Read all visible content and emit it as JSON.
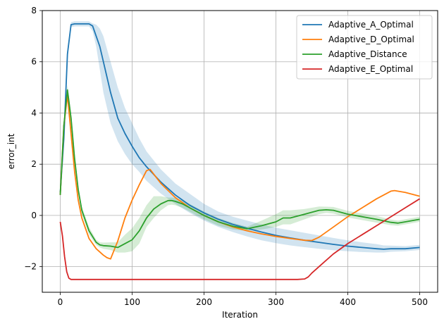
{
  "chart_data": {
    "type": "line",
    "xlabel": "Iteration",
    "ylabel": "error_int",
    "xlim": [
      -25,
      525
    ],
    "ylim": [
      -3,
      8
    ],
    "xticks": [
      0,
      100,
      200,
      300,
      400,
      500
    ],
    "yticks": [
      -2,
      0,
      2,
      4,
      6,
      8
    ],
    "ytick_labels": [
      "−2",
      "0",
      "2",
      "4",
      "6",
      "8"
    ],
    "grid": true,
    "legend_position": "top-right",
    "series": [
      {
        "name": "Adaptive_A_Optimal",
        "color": "#1f77b4",
        "x": [
          0,
          5,
          10,
          15,
          20,
          30,
          40,
          45,
          50,
          55,
          60,
          70,
          80,
          90,
          100,
          110,
          120,
          140,
          160,
          180,
          200,
          220,
          240,
          260,
          280,
          300,
          320,
          340,
          360,
          380,
          400,
          420,
          440,
          450,
          460,
          480,
          500
        ],
        "y": [
          0.9,
          3.0,
          6.3,
          7.45,
          7.48,
          7.48,
          7.48,
          7.4,
          7.0,
          6.6,
          6.0,
          4.8,
          3.8,
          3.2,
          2.7,
          2.25,
          1.9,
          1.3,
          0.8,
          0.4,
          0.1,
          -0.15,
          -0.35,
          -0.5,
          -0.65,
          -0.78,
          -0.88,
          -0.97,
          -1.05,
          -1.13,
          -1.2,
          -1.25,
          -1.3,
          -1.32,
          -1.3,
          -1.3,
          -1.25
        ],
        "band_lower": [
          0.8,
          2.9,
          6.1,
          7.35,
          7.38,
          7.38,
          7.38,
          7.2,
          6.6,
          5.7,
          4.8,
          3.6,
          2.9,
          2.4,
          2.0,
          1.7,
          1.35,
          0.85,
          0.45,
          0.1,
          -0.2,
          -0.45,
          -0.65,
          -0.82,
          -0.97,
          -1.08,
          -1.17,
          -1.24,
          -1.3,
          -1.36,
          -1.4,
          -1.43,
          -1.45,
          -1.45,
          -1.42,
          -1.4,
          -1.35
        ],
        "band_upper": [
          1.0,
          3.1,
          6.5,
          7.55,
          7.58,
          7.58,
          7.58,
          7.5,
          7.45,
          7.3,
          7.0,
          6.0,
          5.0,
          4.2,
          3.6,
          3.0,
          2.5,
          1.8,
          1.25,
          0.85,
          0.45,
          0.15,
          -0.05,
          -0.2,
          -0.35,
          -0.48,
          -0.58,
          -0.68,
          -0.78,
          -0.88,
          -0.97,
          -1.05,
          -1.12,
          -1.17,
          -1.18,
          -1.2,
          -1.15
        ]
      },
      {
        "name": "Adaptive_D_Optimal",
        "color": "#ff7f0e",
        "x": [
          0,
          5,
          10,
          15,
          20,
          25,
          30,
          40,
          50,
          60,
          65,
          70,
          80,
          90,
          100,
          110,
          120,
          125,
          140,
          160,
          180,
          200,
          220,
          240,
          260,
          280,
          300,
          320,
          340,
          350,
          360,
          380,
          400,
          420,
          440,
          460,
          465,
          480,
          500
        ],
        "y": [
          0.8,
          3.5,
          4.7,
          3.2,
          1.7,
          0.6,
          -0.1,
          -0.9,
          -1.3,
          -1.55,
          -1.65,
          -1.7,
          -1.0,
          -0.1,
          0.6,
          1.2,
          1.75,
          1.8,
          1.25,
          0.7,
          0.3,
          0.0,
          -0.25,
          -0.45,
          -0.6,
          -0.72,
          -0.82,
          -0.9,
          -0.97,
          -0.98,
          -0.85,
          -0.45,
          -0.05,
          0.3,
          0.65,
          0.95,
          0.97,
          0.9,
          0.75
        ]
      },
      {
        "name": "Adaptive_Distance",
        "color": "#2ca02c",
        "x": [
          0,
          5,
          10,
          15,
          20,
          25,
          30,
          40,
          50,
          55,
          60,
          70,
          80,
          90,
          100,
          110,
          120,
          130,
          140,
          150,
          155,
          160,
          170,
          180,
          200,
          220,
          240,
          260,
          280,
          300,
          310,
          320,
          340,
          360,
          370,
          380,
          400,
          420,
          440,
          460,
          470,
          480,
          500
        ],
        "y": [
          0.8,
          3.5,
          4.9,
          3.8,
          2.2,
          1.0,
          0.2,
          -0.6,
          -1.05,
          -1.15,
          -1.18,
          -1.2,
          -1.25,
          -1.1,
          -0.95,
          -0.6,
          -0.1,
          0.25,
          0.45,
          0.58,
          0.58,
          0.55,
          0.45,
          0.3,
          0.0,
          -0.25,
          -0.42,
          -0.52,
          -0.4,
          -0.25,
          -0.1,
          -0.1,
          0.05,
          0.2,
          0.22,
          0.2,
          0.05,
          -0.05,
          -0.15,
          -0.27,
          -0.3,
          -0.25,
          -0.15
        ],
        "band_lower": [
          0.7,
          3.3,
          4.7,
          3.6,
          2.0,
          0.85,
          0.05,
          -0.75,
          -1.15,
          -1.25,
          -1.3,
          -1.35,
          -1.45,
          -1.45,
          -1.4,
          -1.1,
          -0.45,
          -0.1,
          0.2,
          0.4,
          0.42,
          0.4,
          0.3,
          0.15,
          -0.15,
          -0.4,
          -0.55,
          -0.6,
          -0.55,
          -0.45,
          -0.35,
          -0.35,
          -0.15,
          0.05,
          0.1,
          0.07,
          -0.08,
          -0.18,
          -0.28,
          -0.38,
          -0.4,
          -0.35,
          -0.25
        ],
        "band_upper": [
          0.9,
          3.7,
          5.1,
          4.0,
          2.4,
          1.15,
          0.35,
          -0.45,
          -0.95,
          -1.05,
          -1.06,
          -1.05,
          -1.05,
          -0.75,
          -0.5,
          -0.1,
          0.4,
          0.75,
          0.75,
          0.7,
          0.7,
          0.68,
          0.58,
          0.45,
          0.15,
          -0.1,
          -0.29,
          -0.44,
          -0.2,
          0.05,
          0.2,
          0.2,
          0.25,
          0.35,
          0.34,
          0.33,
          0.18,
          0.08,
          -0.02,
          -0.16,
          -0.2,
          -0.15,
          -0.05
        ]
      },
      {
        "name": "Adaptive_E_Optimal",
        "color": "#d62728",
        "x": [
          0,
          3,
          6,
          9,
          12,
          15,
          20,
          40,
          100,
          200,
          300,
          330,
          340,
          345,
          350,
          360,
          380,
          400,
          420,
          440,
          460,
          480,
          500
        ],
        "y": [
          -0.25,
          -0.8,
          -1.6,
          -2.2,
          -2.45,
          -2.5,
          -2.5,
          -2.5,
          -2.5,
          -2.5,
          -2.5,
          -2.5,
          -2.48,
          -2.4,
          -2.25,
          -2.0,
          -1.5,
          -1.1,
          -0.75,
          -0.4,
          -0.05,
          0.3,
          0.65
        ]
      }
    ]
  }
}
